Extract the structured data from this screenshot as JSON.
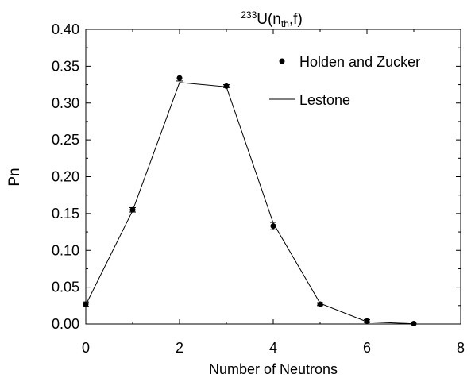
{
  "chart_data": {
    "type": "scatter",
    "title_parts": {
      "mass_number": "233",
      "element": "U(n",
      "subscript": "th",
      "rest": ",f)"
    },
    "xlabel": "Number of Neutrons",
    "ylabel": "Pn",
    "xlim": [
      0,
      8
    ],
    "ylim": [
      0,
      0.4
    ],
    "x_ticks": [
      "0",
      "2",
      "4",
      "6",
      "8"
    ],
    "y_ticks": [
      "0.00",
      "0.05",
      "0.10",
      "0.15",
      "0.20",
      "0.25",
      "0.30",
      "0.35",
      "0.40"
    ],
    "grid": false,
    "legend_position": "top-right",
    "series": [
      {
        "name": "Holden and Zucker",
        "kind": "points-with-errorbars",
        "color": "#000000",
        "x": [
          0,
          1,
          2,
          3,
          4,
          5,
          6,
          7
        ],
        "y": [
          0.027,
          0.155,
          0.334,
          0.323,
          0.133,
          0.027,
          0.004,
          0.0005
        ],
        "err": [
          0.003,
          0.003,
          0.004,
          0.002,
          0.005,
          0.002,
          0.002,
          0.0005
        ]
      },
      {
        "name": "Lestone",
        "kind": "line",
        "color": "#000000",
        "x": [
          0,
          1,
          2,
          3,
          4,
          5,
          6,
          7
        ],
        "y": [
          0.026,
          0.154,
          0.328,
          0.322,
          0.137,
          0.028,
          0.003,
          0.0003
        ]
      }
    ]
  }
}
